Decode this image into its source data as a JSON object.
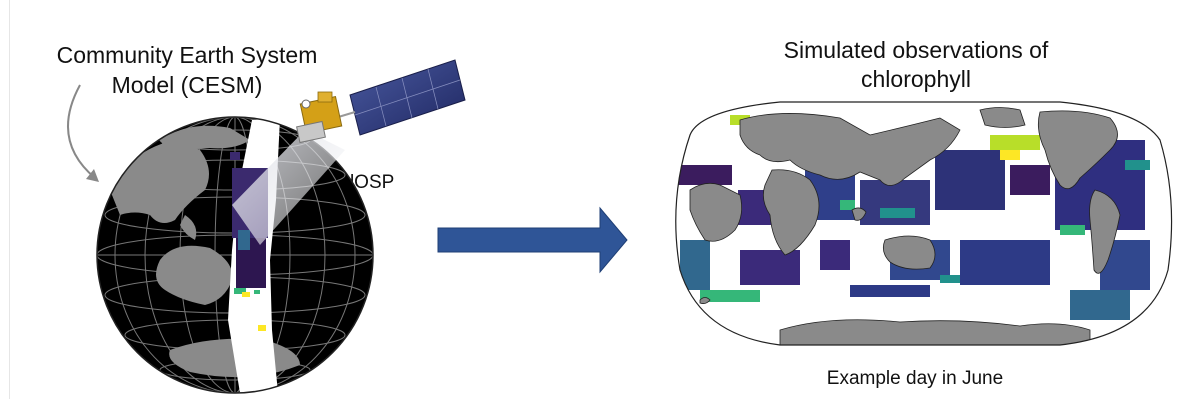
{
  "left_caption": {
    "line1": "Community Earth System",
    "line2": "Model (CESM)"
  },
  "satellite": {
    "label": "ChlOSP",
    "icon": "satellite-icon"
  },
  "right_caption": {
    "line1": "Simulated observations of",
    "line2": "chlorophyll"
  },
  "bottom_caption": "Example day in June",
  "icons": {
    "globe": "globe-icon",
    "arrow": "right-arrow-icon",
    "map": "world-map-icon"
  },
  "colors": {
    "land": "#8a8a8a",
    "ocean_dark": "#000000",
    "swath": "#ffffff",
    "chl_low": "#3b1c5e",
    "chl_mid": "#31688e",
    "chl_high": "#35b779",
    "chl_max": "#fde725",
    "arrow": "#2f5597"
  }
}
